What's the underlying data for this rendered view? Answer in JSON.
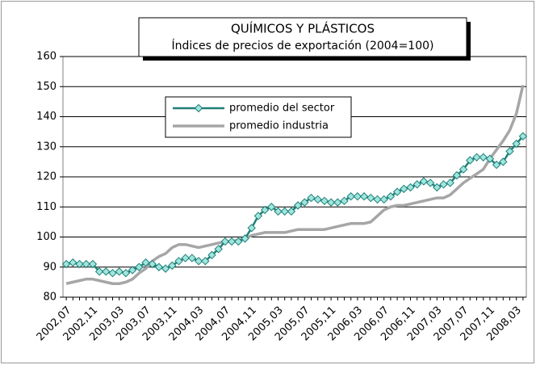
{
  "chart_data": {
    "type": "line",
    "title": "QUÍMICOS Y PLÁSTICOS",
    "subtitle": "Índices de precios de exportación (2004=100)",
    "categories": [
      "2002,07",
      null,
      null,
      null,
      "2002,11",
      null,
      null,
      null,
      "2003,03",
      null,
      null,
      null,
      "2003,07",
      null,
      null,
      null,
      "2003,11",
      null,
      null,
      null,
      "2004,03",
      null,
      null,
      null,
      "2004,07",
      null,
      null,
      null,
      "2004,11",
      null,
      null,
      null,
      "2005,03",
      null,
      null,
      null,
      "2005,07",
      null,
      null,
      null,
      "2005,11",
      null,
      null,
      null,
      "2006,03",
      null,
      null,
      null,
      "2006,07",
      null,
      null,
      null,
      "2006,11",
      null,
      null,
      null,
      "2007,03",
      null,
      null,
      null,
      "2007,07",
      null,
      null,
      null,
      "2007,11",
      null,
      null,
      null,
      "2008,03",
      null
    ],
    "series": [
      {
        "name": "promedio del sector",
        "color": "#1f7f76",
        "marker": "diamond",
        "values": [
          91,
          91.5,
          91,
          91,
          91,
          88.5,
          88.5,
          88,
          88.5,
          88,
          89,
          90,
          91.5,
          91,
          90,
          89.5,
          90.5,
          92,
          93,
          93,
          92,
          92,
          94,
          96,
          98.5,
          98.5,
          98.5,
          99.5,
          103,
          107,
          109,
          110,
          108.5,
          108.5,
          108.5,
          110.5,
          111.5,
          113,
          112.5,
          112,
          111.5,
          111.5,
          112,
          113.5,
          113.5,
          113.5,
          113,
          112.5,
          112.5,
          113.5,
          115,
          116,
          116.5,
          117.5,
          118.5,
          118,
          116.5,
          117.5,
          118,
          120.5,
          122.5,
          125.5,
          126.5,
          126.5,
          126,
          124,
          125,
          128.5,
          131,
          133.5
        ]
      },
      {
        "name": "promedio industria",
        "color": "#a6a6a6",
        "values": [
          84.5,
          85,
          85.5,
          86,
          86,
          85.5,
          85,
          84.5,
          84.5,
          85,
          86,
          88,
          89.5,
          92,
          93.5,
          94.5,
          96.5,
          97.5,
          97.5,
          97,
          96.5,
          97,
          97.5,
          98,
          98.5,
          98.5,
          99,
          99.5,
          100.5,
          101,
          101.5,
          101.5,
          101.5,
          101.5,
          102,
          102.5,
          102.5,
          102.5,
          102.5,
          102.5,
          103,
          103.5,
          104,
          104.5,
          104.5,
          104.5,
          105,
          107,
          109,
          110,
          110.5,
          110.5,
          111,
          111.5,
          112,
          112.5,
          113,
          113,
          114,
          116,
          118,
          119.5,
          121,
          122.5,
          126,
          129,
          132,
          135.5,
          141,
          150.5
        ]
      }
    ],
    "ylim": [
      80,
      160
    ],
    "yticks": [
      80,
      90,
      100,
      110,
      120,
      130,
      140,
      150,
      160
    ],
    "grid": true
  }
}
